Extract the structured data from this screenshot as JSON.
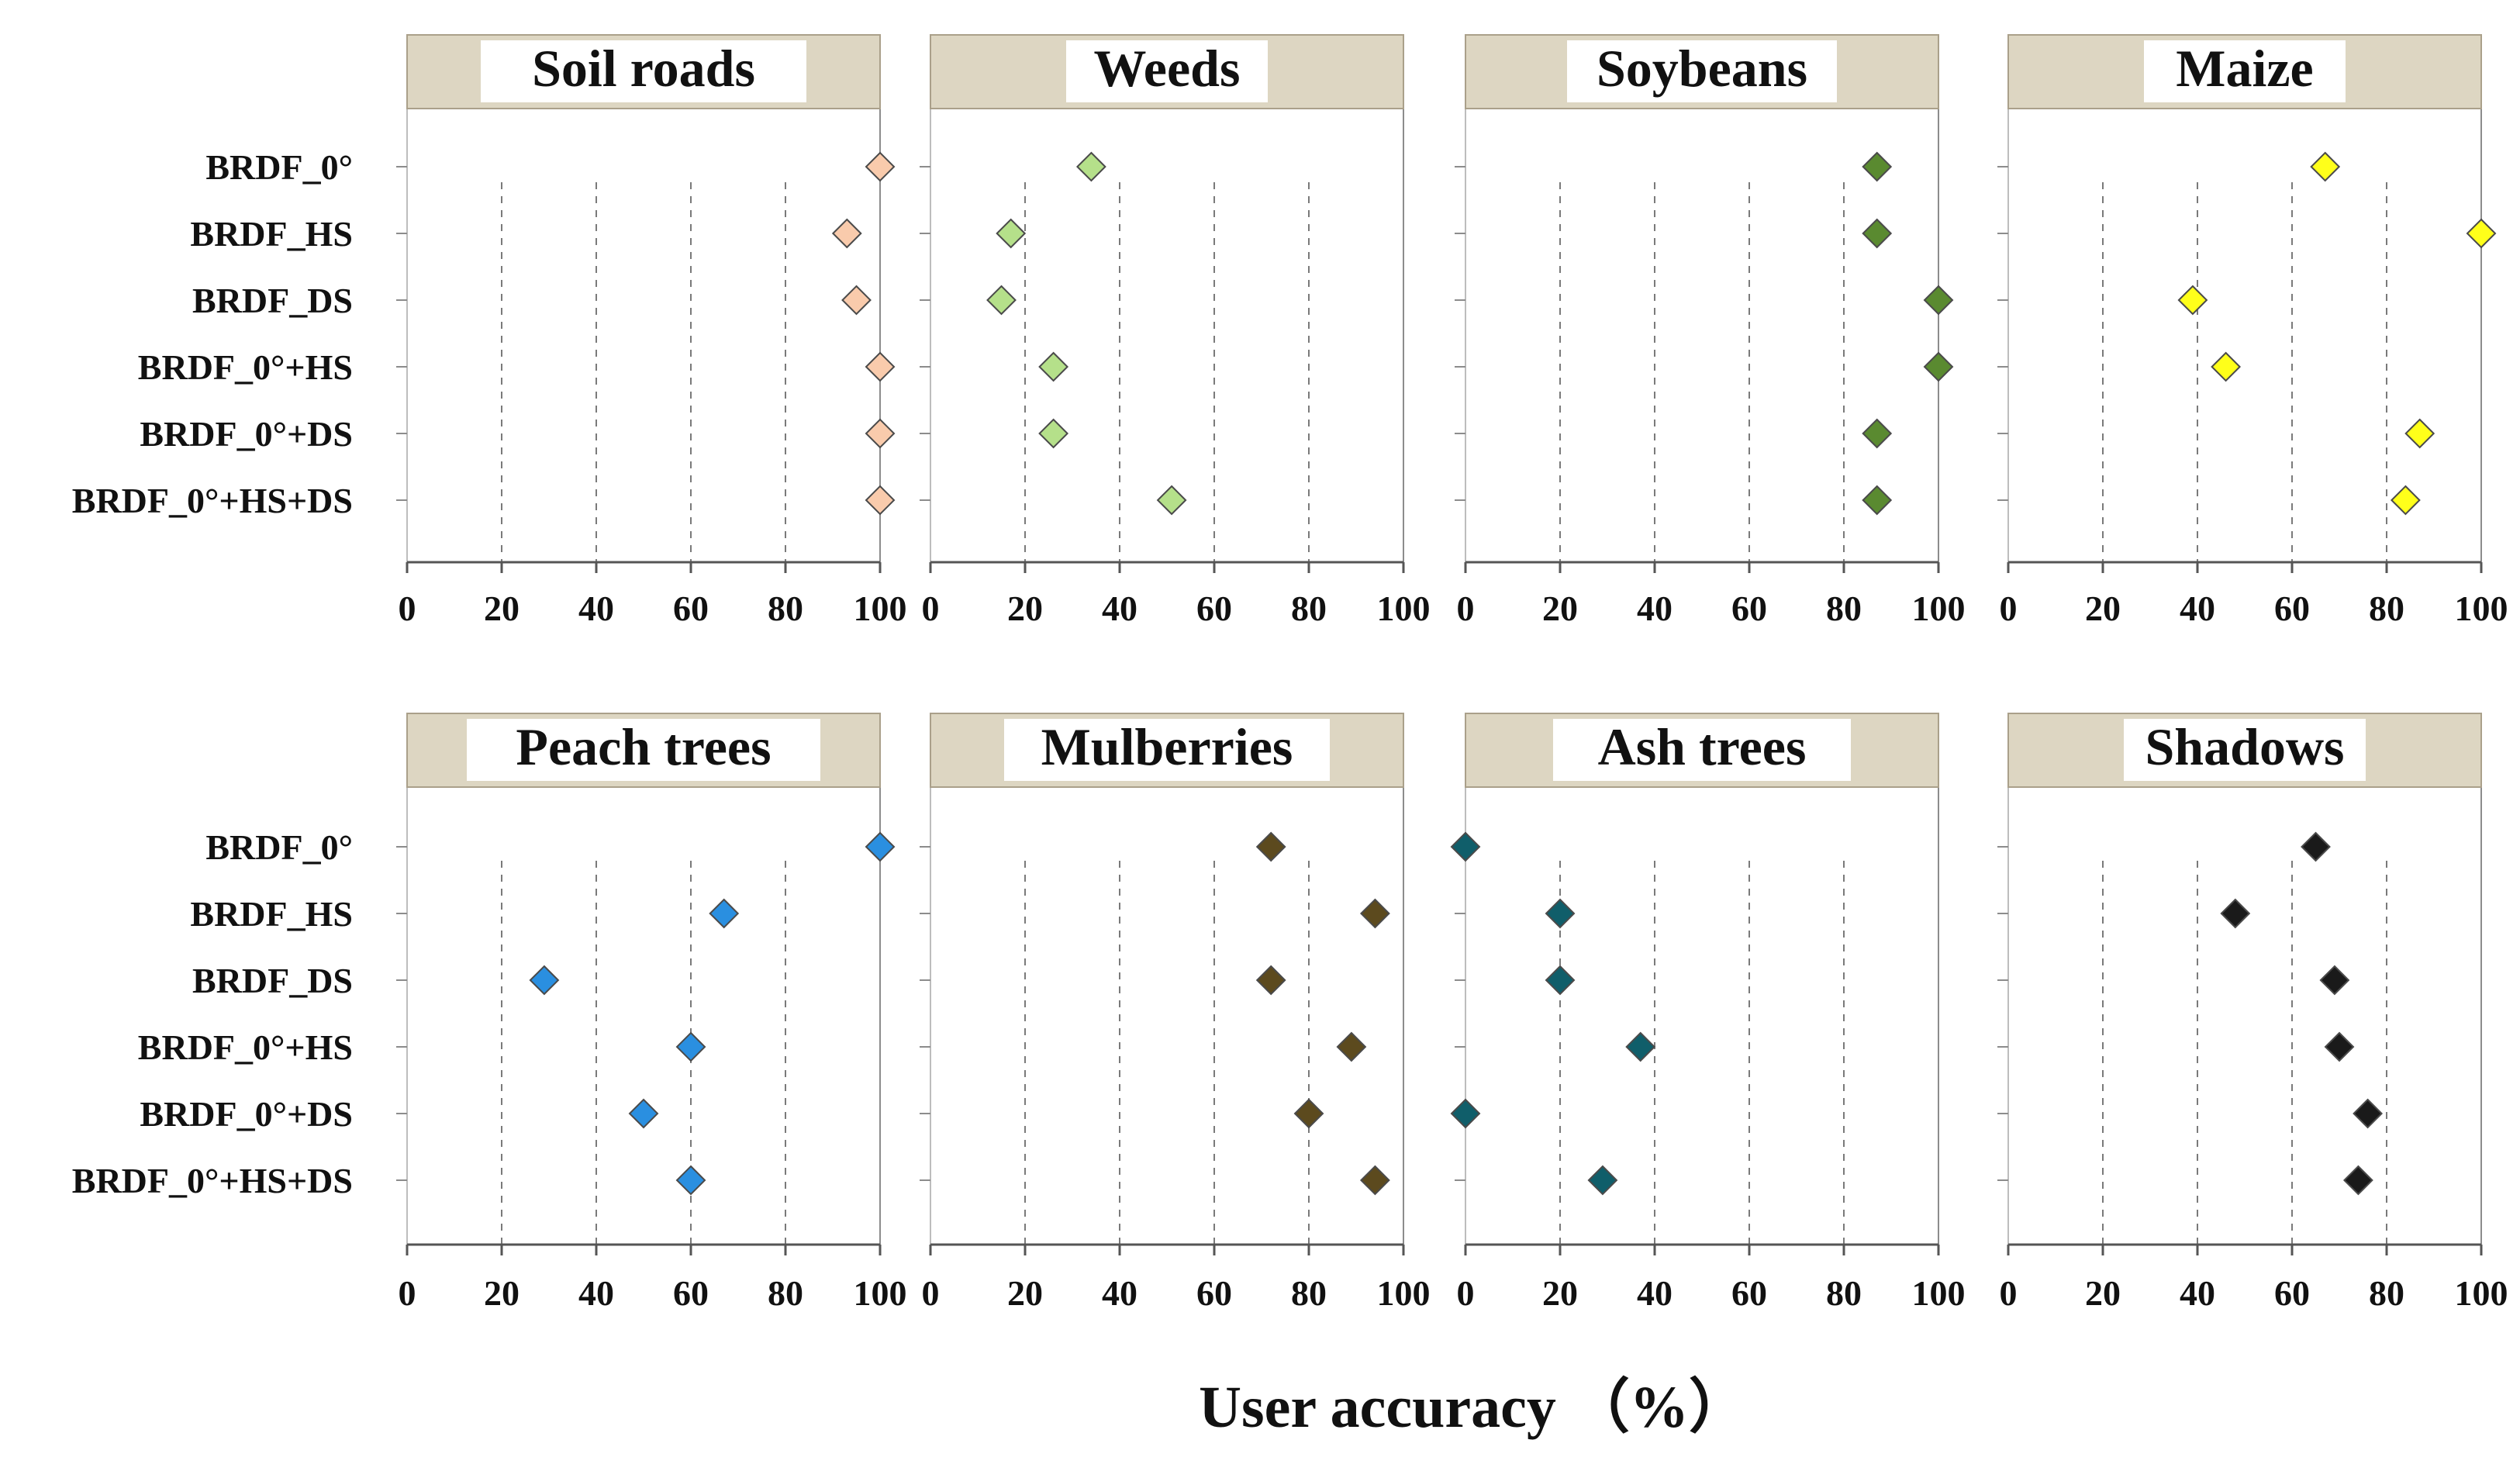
{
  "chart_data": {
    "type": "scatter",
    "global_xlabel": "User accuracy （%）",
    "categories": [
      "BRDF_0°",
      "BRDF_HS",
      "BRDF_DS",
      "BRDF_0°+HS",
      "BRDF_0°+DS",
      "BRDF_0°+HS+DS"
    ],
    "xlim": [
      0,
      100
    ],
    "xticks": [
      "0",
      "20",
      "40",
      "60",
      "80",
      "100"
    ],
    "grid": "vertical dashed",
    "panels": [
      {
        "title": "Soil roads",
        "color": "#f9cbac",
        "values": [
          100,
          93,
          95,
          100,
          100,
          100
        ]
      },
      {
        "title": "Weeds",
        "color": "#b5e08a",
        "values": [
          34,
          17,
          15,
          26,
          26,
          51
        ]
      },
      {
        "title": "Soybeans",
        "color": "#5a8a30",
        "values": [
          87,
          87,
          100,
          100,
          87,
          87
        ]
      },
      {
        "title": "Maize",
        "color": "#ffff1a",
        "values": [
          67,
          100,
          39,
          46,
          87,
          84
        ]
      },
      {
        "title": "Peach trees",
        "color": "#2a8fe0",
        "values": [
          100,
          67,
          29,
          60,
          50,
          60
        ]
      },
      {
        "title": "Mulberries",
        "color": "#5c4a1e",
        "values": [
          72,
          94,
          72,
          89,
          80,
          94
        ]
      },
      {
        "title": "Ash trees",
        "color": "#105e6a",
        "values": [
          0,
          20,
          20,
          37,
          0,
          29
        ]
      },
      {
        "title": "Shadows",
        "color": "#1a1a1a",
        "values": [
          65,
          48,
          69,
          70,
          76,
          74
        ]
      }
    ]
  }
}
